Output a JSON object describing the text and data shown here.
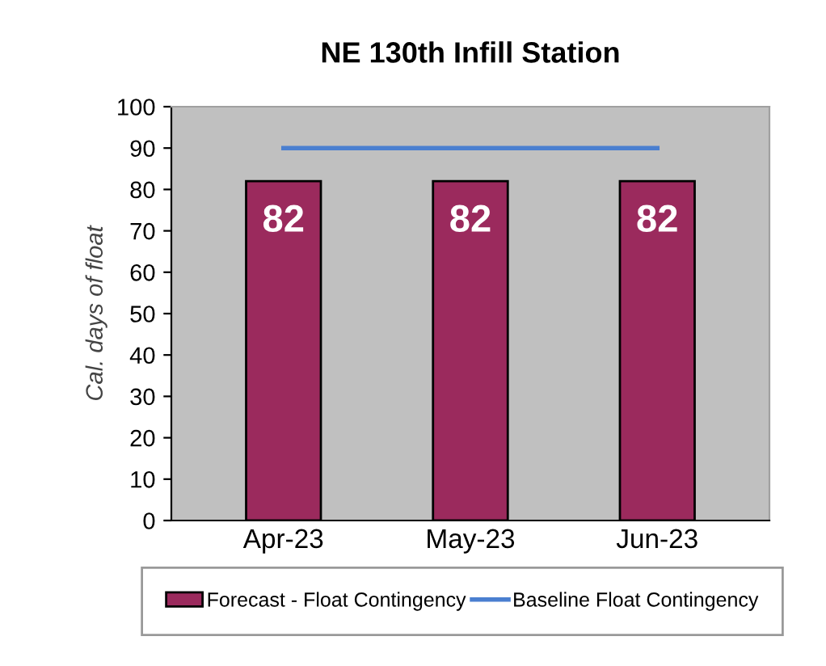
{
  "chart_data": {
    "type": "bar",
    "title": "NE 130th Infill Station",
    "ylabel": "Cal. days of float",
    "categories": [
      "Apr-23",
      "May-23",
      "Jun-23"
    ],
    "series": [
      {
        "name": "Forecast - Float Contingency",
        "color": "#9b2a5d",
        "values": [
          82,
          82,
          82
        ],
        "value_labels": [
          "82",
          "82",
          "82"
        ]
      },
      {
        "name": "Baseline Float Contingency",
        "type": "line",
        "color": "#4a7fd0",
        "values": [
          90,
          90,
          90
        ]
      }
    ],
    "ylim": [
      0,
      100
    ],
    "yticks": [
      0,
      10,
      20,
      30,
      40,
      50,
      60,
      70,
      80,
      90,
      100
    ],
    "grid": false,
    "legend": "bottom",
    "marker": "none",
    "line_style": "solid"
  }
}
